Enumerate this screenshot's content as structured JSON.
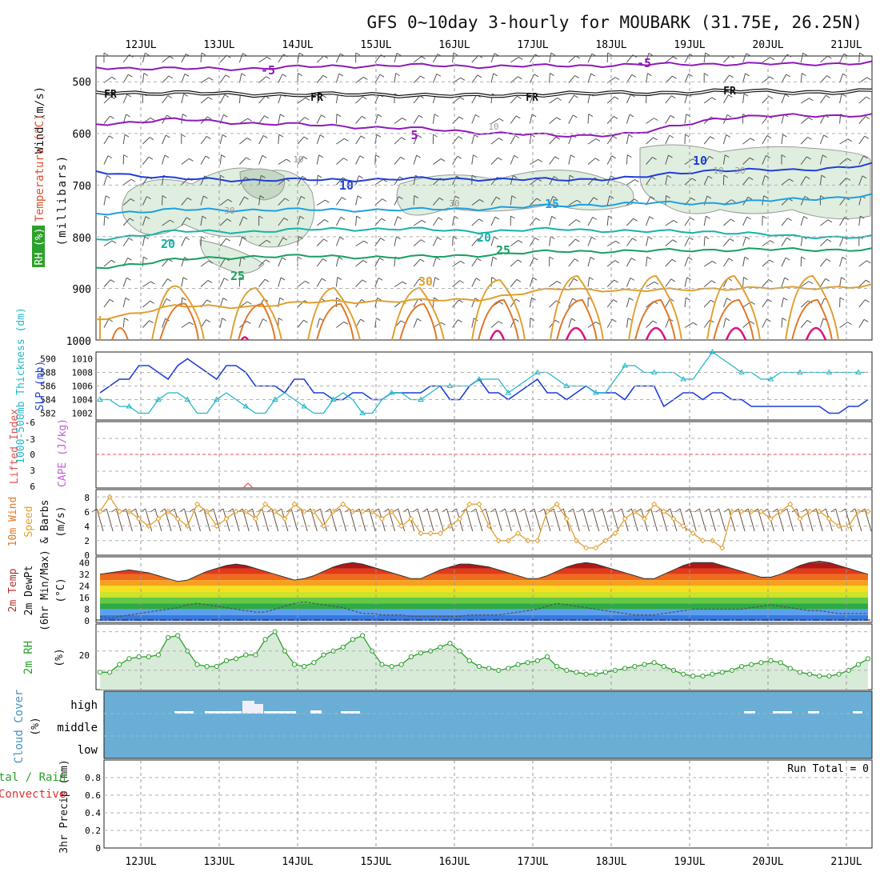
{
  "title": "GFS 0~10day 3-hourly for MOUBARK (31.75E, 26.25N)",
  "days": [
    "12JUL",
    "13JUL",
    "14JUL",
    "15JUL",
    "16JUL",
    "17JUL",
    "18JUL",
    "19JUL",
    "20JUL",
    "21JUL"
  ],
  "colors": {
    "purple": "#8e19b8",
    "blue": "#1f3fd6",
    "sky": "#1ea0e0",
    "teal": "#14b4a8",
    "green": "#16a060",
    "orange": "#e0a030",
    "dkorange": "#e07828",
    "magenta": "#e0107e",
    "cyan": "#22b8c8",
    "rh_fill": "#d8ead8",
    "cloud": "#6aaed6",
    "barb": "#555555"
  },
  "chart_data": [
    {
      "type": "line",
      "panel": "upper_air",
      "ylabels": [
        "Wind (m/s)",
        "Temperature (°C)",
        "(millibars)",
        "RH (%)"
      ],
      "yticks": [
        500,
        600,
        700,
        800,
        900,
        1000
      ],
      "ylim": [
        1000,
        450
      ],
      "isotherm_labels": [
        "-5",
        "-5",
        "FR",
        "FR",
        "FR",
        "FR",
        "5",
        "10",
        "10",
        "15",
        "20",
        "20",
        "25",
        "25",
        "30"
      ],
      "rh_labels": [
        "10",
        "10",
        "30",
        "30",
        "30",
        "10"
      ],
      "series": [
        {
          "label": "-5",
          "level_mb": [
            472,
            475,
            474,
            470,
            468,
            470,
            469,
            467,
            465,
            466,
            463
          ]
        },
        {
          "label": "FR",
          "level_mb": [
            520,
            522,
            524,
            525,
            525,
            528,
            522,
            523,
            518,
            520,
            518
          ]
        },
        {
          "label": "5",
          "level_mb": [
            582,
            573,
            580,
            585,
            590,
            598,
            605,
            600,
            570,
            565,
            565
          ]
        },
        {
          "label": "10",
          "level_mb": [
            673,
            688,
            690,
            690,
            688,
            688,
            690,
            685,
            670,
            672,
            660
          ]
        },
        {
          "label": "15",
          "level_mb": [
            755,
            748,
            748,
            748,
            748,
            745,
            740,
            735,
            735,
            728,
            720
          ]
        },
        {
          "label": "20",
          "level_mb": [
            805,
            790,
            790,
            785,
            785,
            790,
            785,
            790,
            790,
            800,
            800
          ]
        },
        {
          "label": "25",
          "level_mb": [
            860,
            845,
            838,
            838,
            840,
            835,
            828,
            828,
            825,
            825,
            825
          ]
        },
        {
          "label": "30",
          "level_mb": [
            960,
            935,
            935,
            925,
            925,
            920,
            900,
            905,
            900,
            900,
            895
          ]
        }
      ]
    },
    {
      "type": "line",
      "panel": "thickness_slp",
      "ylabels": [
        "1000-500mb Thickness (dm)",
        "SLP (mb)"
      ],
      "yticks_left": [
        582,
        584,
        586,
        588,
        590
      ],
      "yticks_right": [
        1002,
        1004,
        1006,
        1008,
        1010
      ],
      "series": [
        {
          "name": "1000-500mb Thickness (dm)",
          "values": [
            585,
            586,
            587,
            587,
            589,
            589,
            588,
            587,
            589,
            590,
            589,
            588,
            587,
            589,
            589,
            588,
            586,
            586,
            586,
            585,
            587,
            587,
            585,
            585,
            584,
            584,
            585,
            585,
            584,
            584,
            585,
            585,
            585,
            585,
            586,
            586,
            584,
            584,
            586,
            587,
            585,
            585,
            584,
            585,
            586,
            587,
            585,
            585,
            584,
            585,
            586,
            585,
            585,
            585,
            584,
            586,
            586,
            586,
            583,
            584,
            585,
            585,
            584,
            585,
            585,
            584,
            584,
            583,
            583,
            583,
            583,
            583,
            583,
            583,
            583,
            582,
            582,
            583,
            583,
            584
          ]
        },
        {
          "name": "SLP (mb)",
          "values": [
            1004,
            1004,
            1003,
            1003,
            1002,
            1002,
            1004,
            1005,
            1005,
            1004,
            1002,
            1002,
            1004,
            1005,
            1004,
            1003,
            1002,
            1002,
            1004,
            1005,
            1004,
            1003,
            1002,
            1002,
            1004,
            1005,
            1004,
            1002,
            1002,
            1004,
            1005,
            1005,
            1004,
            1004,
            1005,
            1006,
            1006,
            1006,
            1006,
            1007,
            1007,
            1007,
            1005,
            1006,
            1007,
            1008,
            1008,
            1007,
            1006,
            1006,
            1006,
            1005,
            1005,
            1007,
            1009,
            1009,
            1008,
            1008,
            1008,
            1008,
            1007,
            1007,
            1009,
            1011,
            1010,
            1009,
            1008,
            1008,
            1007,
            1007,
            1008,
            1008,
            1008,
            1008,
            1008,
            1008,
            1008,
            1008,
            1008,
            1008
          ]
        }
      ]
    },
    {
      "type": "line",
      "panel": "lifted_index_cape",
      "ylabels": [
        "Lifted Index",
        "CAPE (J/kg)"
      ],
      "yticks": [
        -6,
        -3,
        0,
        3,
        6
      ],
      "ylim": [
        -6,
        6
      ],
      "reference_line": 0
    },
    {
      "type": "line",
      "panel": "wind10m",
      "ylabels": [
        "10m Wind",
        "Speed",
        "& Barbs",
        "(m/s)"
      ],
      "yticks": [
        0,
        2,
        4,
        6,
        8
      ],
      "ylim": [
        0,
        9
      ],
      "series": [
        {
          "name": "Speed",
          "values": [
            6,
            8,
            6,
            6,
            5,
            4,
            5,
            6,
            5,
            4,
            7,
            6,
            4,
            5,
            6,
            6,
            5,
            7,
            6,
            5,
            7,
            6,
            6,
            4,
            6,
            7,
            6,
            6,
            6,
            5,
            6,
            4,
            5,
            3,
            3,
            3,
            4,
            5,
            7,
            7,
            4,
            2,
            2,
            3,
            2,
            2,
            6,
            7,
            5,
            2,
            1,
            1,
            2,
            3,
            5,
            6,
            5,
            7,
            6,
            5,
            4,
            3,
            2,
            2,
            1,
            6,
            6,
            6,
            6,
            5,
            6,
            7,
            5,
            6,
            6,
            5,
            4,
            4,
            6,
            6
          ]
        }
      ]
    },
    {
      "type": "area",
      "panel": "temp2m",
      "ylabels": [
        "2m Temp",
        "2m DewPt",
        "(6hr Min/Max)",
        "(°C)"
      ],
      "yticks": [
        0,
        8,
        16,
        24,
        32,
        40
      ],
      "ylim": [
        0,
        44
      ],
      "series": [
        {
          "name": "2m Temp",
          "values": [
            32,
            33,
            34,
            35,
            34,
            33,
            31,
            29,
            27,
            28,
            31,
            34,
            36,
            38,
            39,
            38,
            36,
            34,
            32,
            30,
            28,
            29,
            31,
            34,
            37,
            39,
            40,
            39,
            37,
            35,
            33,
            31,
            29,
            29,
            32,
            35,
            37,
            39,
            39,
            38,
            37,
            35,
            33,
            31,
            29,
            29,
            31,
            34,
            37,
            39,
            40,
            39,
            37,
            35,
            33,
            31,
            29,
            29,
            32,
            35,
            38,
            40,
            40,
            40,
            38,
            36,
            34,
            32,
            30,
            30,
            32,
            35,
            38,
            40,
            41,
            40,
            38,
            36,
            34,
            32
          ]
        },
        {
          "name": "2m DewPt",
          "values": [
            3,
            2,
            3,
            4,
            5,
            6,
            7,
            8,
            9,
            11,
            12,
            11,
            10,
            9,
            8,
            7,
            6,
            6,
            8,
            10,
            12,
            13,
            12,
            11,
            10,
            9,
            7,
            5,
            5,
            4,
            4,
            4,
            3,
            3,
            3,
            3,
            3,
            3,
            4,
            4,
            4,
            4,
            5,
            6,
            7,
            8,
            10,
            12,
            11,
            10,
            9,
            8,
            7,
            6,
            5,
            4,
            4,
            4,
            5,
            6,
            7,
            8,
            8,
            8,
            8,
            8,
            8,
            9,
            10,
            11,
            10,
            9,
            8,
            7,
            7,
            6,
            5,
            5,
            5,
            5
          ]
        }
      ]
    },
    {
      "type": "area",
      "panel": "rh2m",
      "ylabels": [
        "2m RH",
        "(%)"
      ],
      "yticks": [
        20
      ],
      "ylim": [
        0,
        34
      ],
      "series": [
        {
          "name": "2m RH",
          "values": [
            9,
            9,
            13,
            16,
            17,
            17,
            18,
            27,
            28,
            20,
            13,
            12,
            12,
            15,
            16,
            18,
            18,
            26,
            30,
            20,
            13,
            12,
            14,
            18,
            20,
            22,
            26,
            28,
            20,
            13,
            12,
            13,
            17,
            19,
            20,
            22,
            24,
            20,
            15,
            12,
            11,
            10,
            11,
            13,
            14,
            15,
            17,
            12,
            10,
            9,
            8,
            8,
            9,
            10,
            11,
            12,
            13,
            14,
            12,
            10,
            8,
            7,
            7,
            8,
            9,
            10,
            12,
            13,
            14,
            15,
            14,
            11,
            9,
            8,
            7,
            7,
            8,
            10,
            13,
            16
          ]
        }
      ]
    },
    {
      "type": "bar",
      "panel": "cloud_cover",
      "ylabels": [
        "Cloud Cover",
        "(%)"
      ],
      "categories": [
        "high",
        "middle",
        "low"
      ]
    },
    {
      "type": "bar",
      "panel": "precip",
      "ylabels": [
        "3hr Precip (mm)",
        "tal / Rain",
        "Convective"
      ],
      "yticks": [
        0,
        0.2,
        0.4,
        0.6,
        0.8
      ],
      "ylim": [
        0,
        1
      ],
      "annotation": "Run Total = 0"
    }
  ]
}
